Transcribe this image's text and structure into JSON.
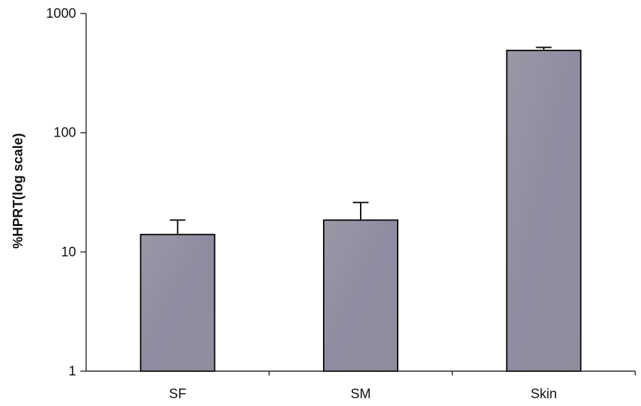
{
  "chart_data": {
    "type": "bar",
    "ylabel": "%HPRT(log scale)",
    "xlabel": "",
    "yscale": "log",
    "ylim": [
      1,
      1000
    ],
    "yticks": [
      1,
      10,
      100,
      1000
    ],
    "ytick_labels": [
      "1",
      "10",
      "100",
      "1000"
    ],
    "categories": [
      "SF",
      "SM",
      "Skin"
    ],
    "values": [
      14,
      18.5,
      490
    ],
    "error_upper": [
      18.5,
      26,
      520
    ],
    "grid": false,
    "legend": "none",
    "bar_color": "#8e8ca0",
    "bar_edge_color": "#111111"
  }
}
